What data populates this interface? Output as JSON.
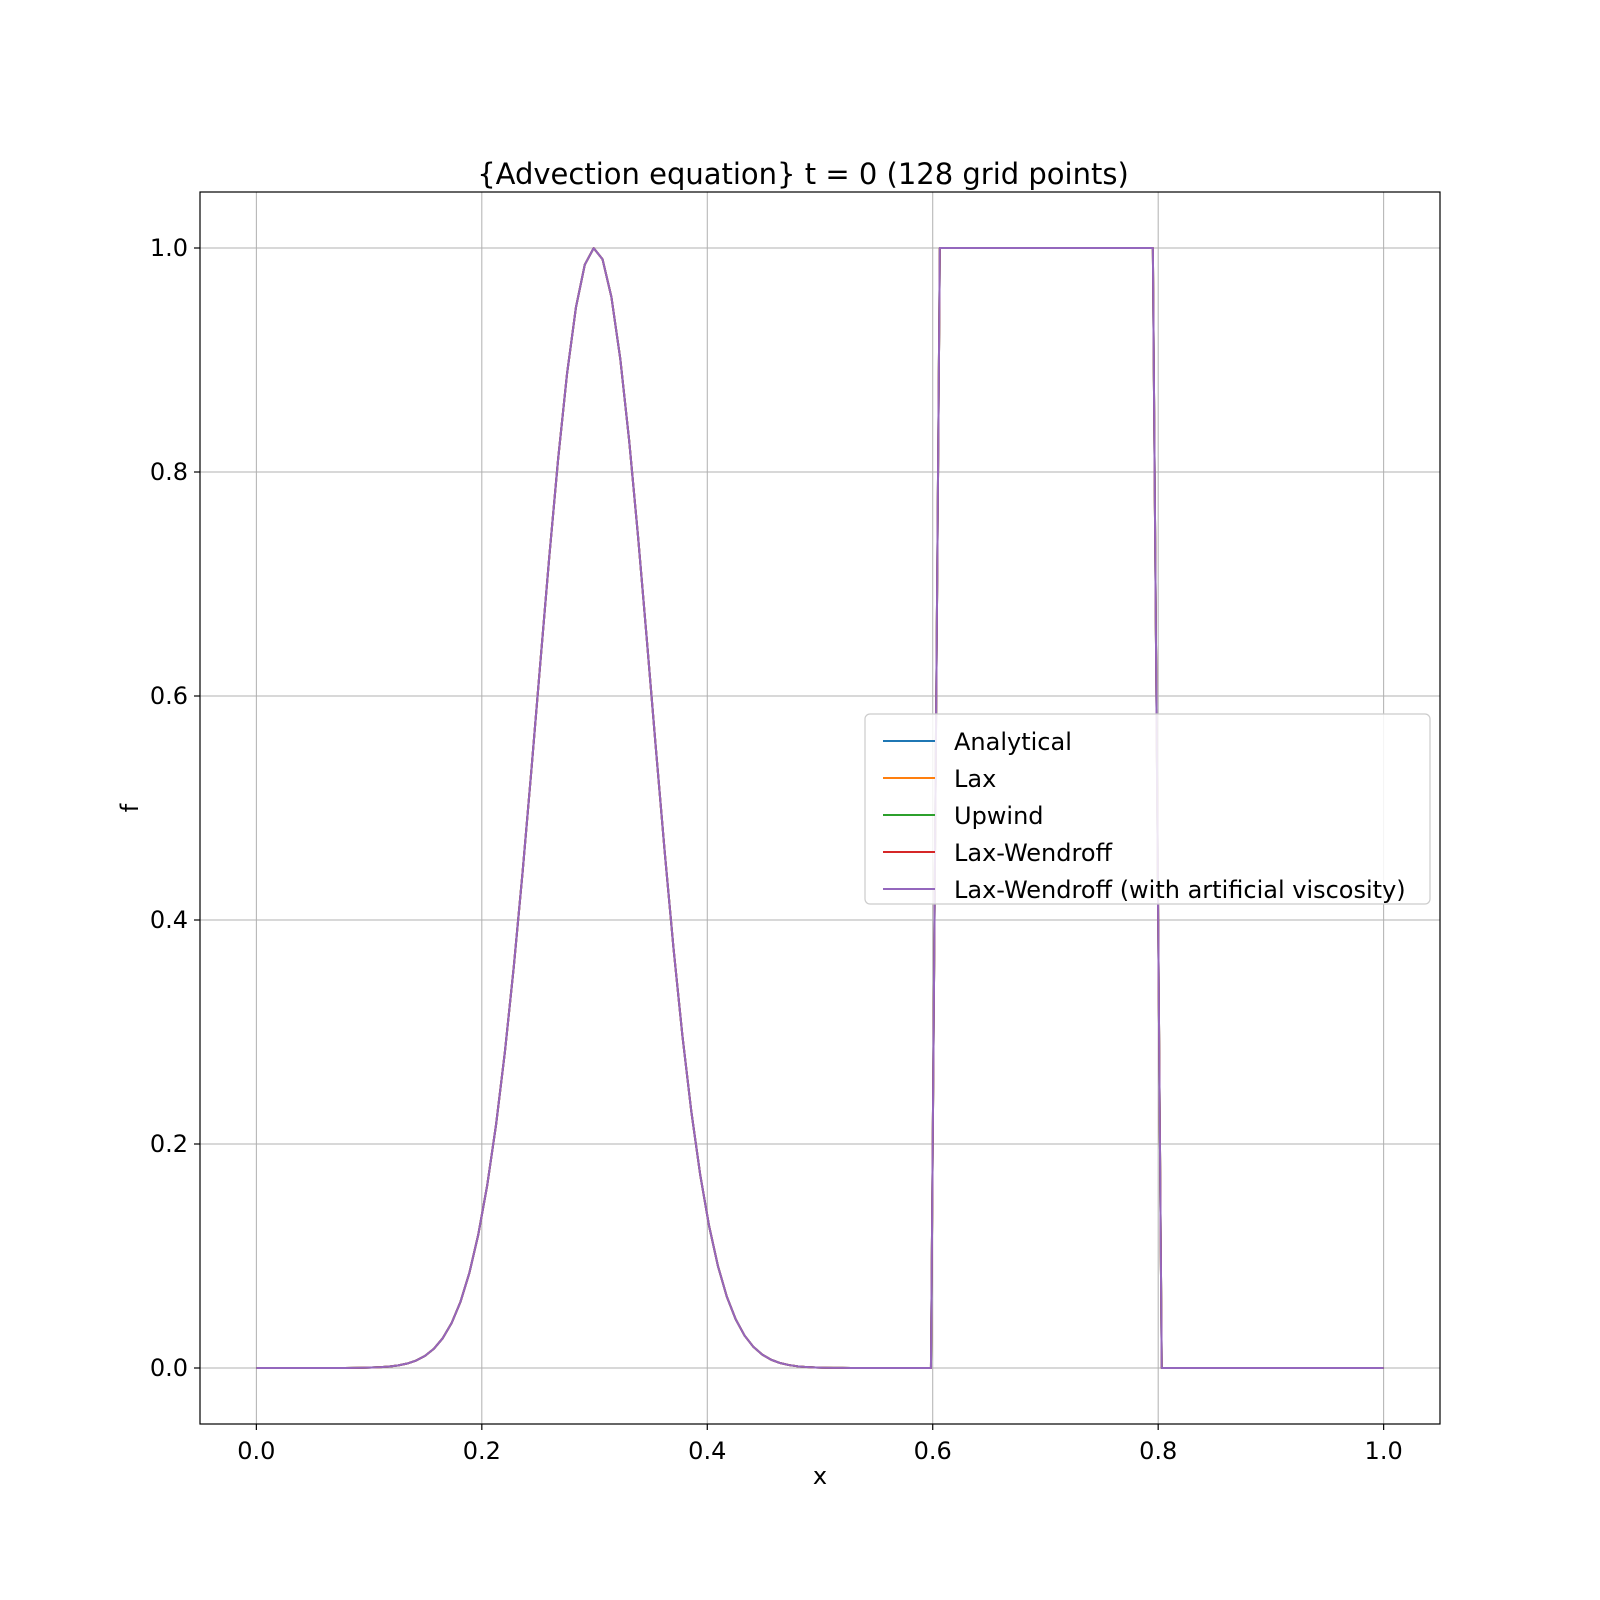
{
  "chart_data": {
    "type": "line",
    "title": "{Advection equation} t = 0 (128 grid points)",
    "xlabel": "x",
    "ylabel": "f",
    "xlim": [
      -0.05,
      1.05
    ],
    "ylim": [
      -0.05,
      1.05
    ],
    "xticks": [
      0.0,
      0.2,
      0.4,
      0.6,
      0.8,
      1.0
    ],
    "xtick_labels": [
      "0.0",
      "0.2",
      "0.4",
      "0.6",
      "0.8",
      "1.0"
    ],
    "yticks": [
      0.0,
      0.2,
      0.4,
      0.6,
      0.8,
      1.0
    ],
    "ytick_labels": [
      "0.0",
      "0.2",
      "0.4",
      "0.6",
      "0.8",
      "1.0"
    ],
    "grid": true,
    "legend_position": "center-right",
    "x_range": [
      0.0,
      1.0
    ],
    "n_points": 128,
    "profile": {
      "gaussian_center": 0.3,
      "gaussian_sigma": 0.05,
      "square_wave_start": 0.6,
      "square_wave_end": 0.8,
      "square_wave_height": 1.0
    },
    "series": [
      {
        "name": "Analytical",
        "color": "#1f77b4"
      },
      {
        "name": "Lax",
        "color": "#ff7f0e"
      },
      {
        "name": "Upwind",
        "color": "#2ca02c"
      },
      {
        "name": "Lax-Wendroff",
        "color": "#d62728"
      },
      {
        "name": "Lax-Wendroff (with artificial viscosity)",
        "color": "#9467bd"
      }
    ]
  }
}
